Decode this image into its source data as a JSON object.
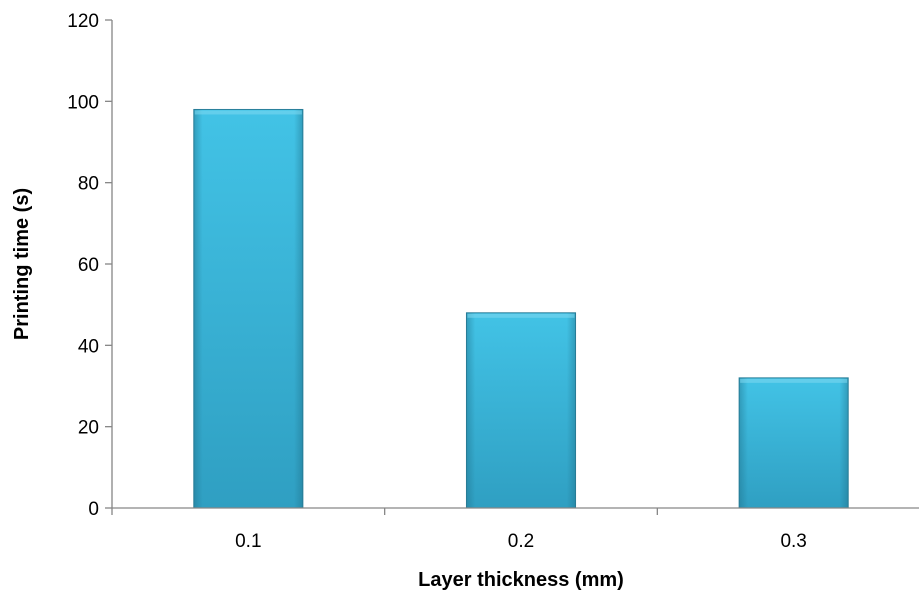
{
  "chart_data": {
    "type": "bar",
    "title": "",
    "xlabel": "Layer thickness (mm)",
    "ylabel": "Printing time (s)",
    "categories": [
      "0.1",
      "0.2",
      "0.3"
    ],
    "values": [
      98,
      48,
      32
    ],
    "ylim": [
      0,
      120
    ],
    "yticks": [
      "0",
      "20",
      "40",
      "60",
      "80",
      "100",
      "120"
    ],
    "grid": false,
    "legend": "none",
    "bar_color": "#3ab4d8",
    "bar_edge_color": "#2a7f9a"
  }
}
